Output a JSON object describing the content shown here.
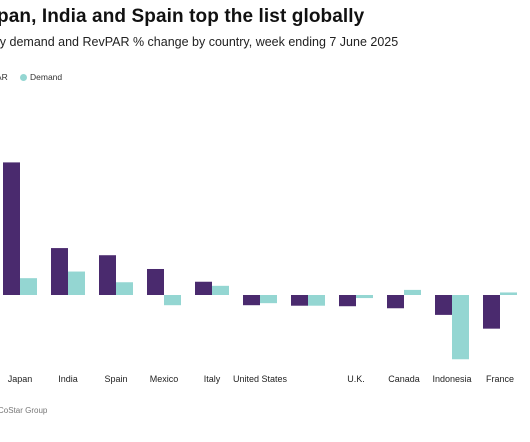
{
  "header": {
    "title": "pan, India and Spain top the list globally",
    "subtitle": "ly demand and RevPAR % change by country, week ending 7 June 2025"
  },
  "legend": {
    "items": [
      {
        "label": "AR",
        "color": "#4a2a6e"
      },
      {
        "label": "Demand",
        "color": "#94d6d2"
      }
    ]
  },
  "source": "CoStar Group",
  "chart_data": {
    "type": "bar",
    "categories": [
      "Japan",
      "India",
      "Spain",
      "Mexico",
      "Italy",
      "United States",
      "",
      "U.K.",
      "Canada",
      "Indonesia",
      "France"
    ],
    "series": [
      {
        "name": "RevPAR",
        "color": "#4a2a6e",
        "values": [
          26.0,
          9.2,
          7.8,
          5.1,
          2.6,
          -2.0,
          -2.1,
          -2.2,
          -2.6,
          -3.9,
          -6.6
        ]
      },
      {
        "name": "Demand",
        "color": "#94d6d2",
        "values": [
          3.3,
          4.6,
          2.5,
          -2.0,
          1.8,
          -1.6,
          -2.1,
          -0.6,
          1.0,
          -12.6,
          0.5
        ]
      }
    ],
    "ylim": [
      -15,
      28
    ],
    "grid": false,
    "legend_position": "top-left"
  }
}
